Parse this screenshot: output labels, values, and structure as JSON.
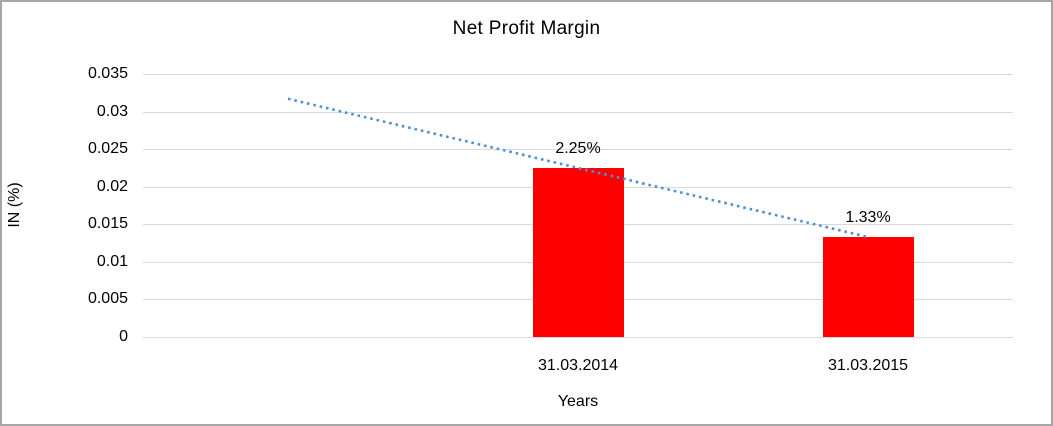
{
  "chart_data": {
    "type": "bar",
    "title": "Net Profit Margin",
    "xlabel": "Years",
    "ylabel": "IN (%)",
    "categories": [
      "31.03.2014",
      "31.03.2015"
    ],
    "values": [
      0.0225,
      0.0133
    ],
    "data_labels": [
      "2.25%",
      "1.33%"
    ],
    "ylim": [
      0,
      0.035
    ],
    "yticks": [
      0,
      0.005,
      0.01,
      0.015,
      0.02,
      0.025,
      0.03,
      0.035
    ],
    "ytick_labels": [
      "0",
      "0.005",
      "0.01",
      "0.015",
      "0.02",
      "0.025",
      "0.03",
      "0.035"
    ],
    "grid": true,
    "legend": false,
    "num_slots": 3,
    "bar_slots": [
      1,
      2
    ],
    "trendline": {
      "type": "linear",
      "style": "dotted",
      "extends_back_to_slot": 0
    },
    "colors": {
      "bar": "#FF0000",
      "trendline": "#4E90D4",
      "gridline": "#D9D9D9",
      "text": "#000000",
      "background": "#FFFFFF",
      "border": "#A6A6A6"
    }
  }
}
